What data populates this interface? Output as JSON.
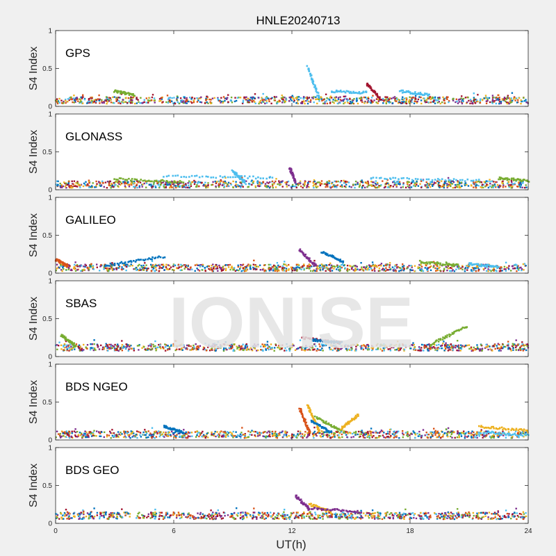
{
  "figure": {
    "title": "HNLE20240713",
    "xlabel": "UT(h)",
    "watermark": "IONISE",
    "colors": {
      "background": "#f0f0f0",
      "axes_bg": "#ffffff",
      "axis": "#262626",
      "watermark": "#e3e3e3",
      "series": [
        "#0072BD",
        "#D95319",
        "#EDB120",
        "#7E2F8E",
        "#77AC30",
        "#4DBEEE",
        "#A2142F"
      ]
    }
  },
  "chart_data": [
    {
      "type": "scatter",
      "panel_label": "GPS",
      "ylabel": "S4 Index",
      "xlim": [
        0,
        24
      ],
      "ylim": [
        0,
        1
      ],
      "xticks": [
        0,
        6,
        12,
        18,
        24
      ],
      "yticks": [
        0,
        0.5,
        1
      ],
      "xticklabels": [],
      "yticklabels": [
        "0",
        "0.5",
        "1"
      ],
      "baseline": 0.08,
      "features": [
        {
          "x": [
            12.8,
            13.4
          ],
          "y": [
            0.52,
            0.1
          ],
          "color": "#4DBEEE"
        },
        {
          "x": [
            15.8,
            16.5
          ],
          "y": [
            0.3,
            0.1
          ],
          "color": "#A2142F"
        },
        {
          "x": [
            14.0,
            15.8
          ],
          "y": [
            0.2,
            0.18
          ],
          "color": "#4DBEEE"
        },
        {
          "x": [
            3.0,
            4.0
          ],
          "y": [
            0.2,
            0.15
          ],
          "color": "#77AC30"
        },
        {
          "x": [
            17.5,
            19.0
          ],
          "y": [
            0.2,
            0.15
          ],
          "color": "#4DBEEE"
        }
      ]
    },
    {
      "type": "scatter",
      "panel_label": "GLONASS",
      "ylabel": "S4 Index",
      "xlim": [
        0,
        24
      ],
      "ylim": [
        0,
        1
      ],
      "xticks": [
        0,
        6,
        12,
        18,
        24
      ],
      "yticks": [
        0,
        0.5,
        1
      ],
      "xticklabels": [],
      "yticklabels": [
        "0",
        "0.5",
        "1"
      ],
      "baseline": 0.07,
      "features": [
        {
          "x": [
            5.5,
            11.0
          ],
          "y": [
            0.18,
            0.16
          ],
          "color": "#4DBEEE"
        },
        {
          "x": [
            9.0,
            9.6
          ],
          "y": [
            0.25,
            0.1
          ],
          "color": "#4DBEEE"
        },
        {
          "x": [
            11.9,
            12.2
          ],
          "y": [
            0.28,
            0.1
          ],
          "color": "#7E2F8E"
        },
        {
          "x": [
            16.0,
            21.5
          ],
          "y": [
            0.15,
            0.12
          ],
          "color": "#4DBEEE"
        },
        {
          "x": [
            3.0,
            6.5
          ],
          "y": [
            0.14,
            0.1
          ],
          "color": "#77AC30"
        },
        {
          "x": [
            22.5,
            24.0
          ],
          "y": [
            0.15,
            0.12
          ],
          "color": "#77AC30"
        }
      ]
    },
    {
      "type": "scatter",
      "panel_label": "GALILEO",
      "ylabel": "S4 Index",
      "xlim": [
        0,
        24
      ],
      "ylim": [
        0,
        1
      ],
      "xticks": [
        0,
        6,
        12,
        18,
        24
      ],
      "yticks": [
        0,
        0.5,
        1
      ],
      "xticklabels": [],
      "yticklabels": [
        "0",
        "0.5",
        "1"
      ],
      "baseline": 0.07,
      "features": [
        {
          "x": [
            2.5,
            5.5
          ],
          "y": [
            0.1,
            0.22
          ],
          "color": "#0072BD"
        },
        {
          "x": [
            13.5,
            14.6
          ],
          "y": [
            0.28,
            0.15
          ],
          "color": "#0072BD"
        },
        {
          "x": [
            12.4,
            13.2
          ],
          "y": [
            0.3,
            0.1
          ],
          "color": "#7E2F8E"
        },
        {
          "x": [
            18.5,
            20.5
          ],
          "y": [
            0.15,
            0.1
          ],
          "color": "#77AC30"
        },
        {
          "x": [
            21.0,
            22.5
          ],
          "y": [
            0.12,
            0.08
          ],
          "color": "#4DBEEE"
        },
        {
          "x": [
            0.0,
            0.6
          ],
          "y": [
            0.18,
            0.1
          ],
          "color": "#D95319"
        }
      ]
    },
    {
      "type": "scatter",
      "panel_label": "SBAS",
      "ylabel": "S4 Index",
      "xlim": [
        0,
        24
      ],
      "ylim": [
        0,
        1
      ],
      "xticks": [
        0,
        6,
        12,
        18,
        24
      ],
      "yticks": [
        0,
        0.5,
        1
      ],
      "xticklabels": [],
      "yticklabels": [
        "0",
        "0.5",
        "1"
      ],
      "baseline": 0.12,
      "features": [
        {
          "x": [
            0.3,
            1.0
          ],
          "y": [
            0.28,
            0.15
          ],
          "color": "#77AC30"
        },
        {
          "x": [
            19.0,
            20.9
          ],
          "y": [
            0.15,
            0.4
          ],
          "color": "#77AC30"
        },
        {
          "x": [
            12.5,
            14.5
          ],
          "y": [
            0.25,
            0.18
          ],
          "color": "#A2142F"
        },
        {
          "x": [
            13.0,
            14.5
          ],
          "y": [
            0.22,
            0.18
          ],
          "color": "#0072BD"
        }
      ]
    },
    {
      "type": "scatter",
      "panel_label": "BDS NGEO",
      "ylabel": "S4 Index",
      "xlim": [
        0,
        24
      ],
      "ylim": [
        0,
        1
      ],
      "xticks": [
        0,
        6,
        12,
        18,
        24
      ],
      "yticks": [
        0,
        0.5,
        1
      ],
      "xticklabels": [],
      "yticklabels": [
        "0",
        "0.5",
        "1"
      ],
      "baseline": 0.07,
      "features": [
        {
          "x": [
            12.4,
            12.9
          ],
          "y": [
            0.42,
            0.1
          ],
          "color": "#D95319"
        },
        {
          "x": [
            12.8,
            13.4
          ],
          "y": [
            0.45,
            0.12
          ],
          "color": "#EDB120"
        },
        {
          "x": [
            13.2,
            14.5
          ],
          "y": [
            0.3,
            0.12
          ],
          "color": "#77AC30"
        },
        {
          "x": [
            14.5,
            15.4
          ],
          "y": [
            0.15,
            0.33
          ],
          "color": "#EDB120"
        },
        {
          "x": [
            13.0,
            14.0
          ],
          "y": [
            0.25,
            0.1
          ],
          "color": "#0072BD"
        },
        {
          "x": [
            5.5,
            6.5
          ],
          "y": [
            0.18,
            0.1
          ],
          "color": "#0072BD"
        },
        {
          "x": [
            21.5,
            24.0
          ],
          "y": [
            0.18,
            0.12
          ],
          "color": "#EDB120"
        },
        {
          "x": [
            21.5,
            24.0
          ],
          "y": [
            0.1,
            0.06
          ],
          "color": "#4DBEEE"
        }
      ]
    },
    {
      "type": "scatter",
      "panel_label": "BDS GEO",
      "ylabel": "S4 Index",
      "xlim": [
        0,
        24
      ],
      "ylim": [
        0,
        1
      ],
      "xticks": [
        0,
        6,
        12,
        18,
        24
      ],
      "yticks": [
        0,
        0.5,
        1
      ],
      "xticklabels": [
        "0",
        "6",
        "12",
        "18",
        "24"
      ],
      "yticklabels": [
        "0",
        "0.5",
        "1"
      ],
      "baseline": 0.1,
      "features": [
        {
          "x": [
            12.2,
            12.9
          ],
          "y": [
            0.36,
            0.18
          ],
          "color": "#7E2F8E"
        },
        {
          "x": [
            12.9,
            14.0
          ],
          "y": [
            0.25,
            0.15
          ],
          "color": "#EDB120"
        },
        {
          "x": [
            13.0,
            15.5
          ],
          "y": [
            0.2,
            0.15
          ],
          "color": "#7E2F8E"
        }
      ]
    }
  ]
}
